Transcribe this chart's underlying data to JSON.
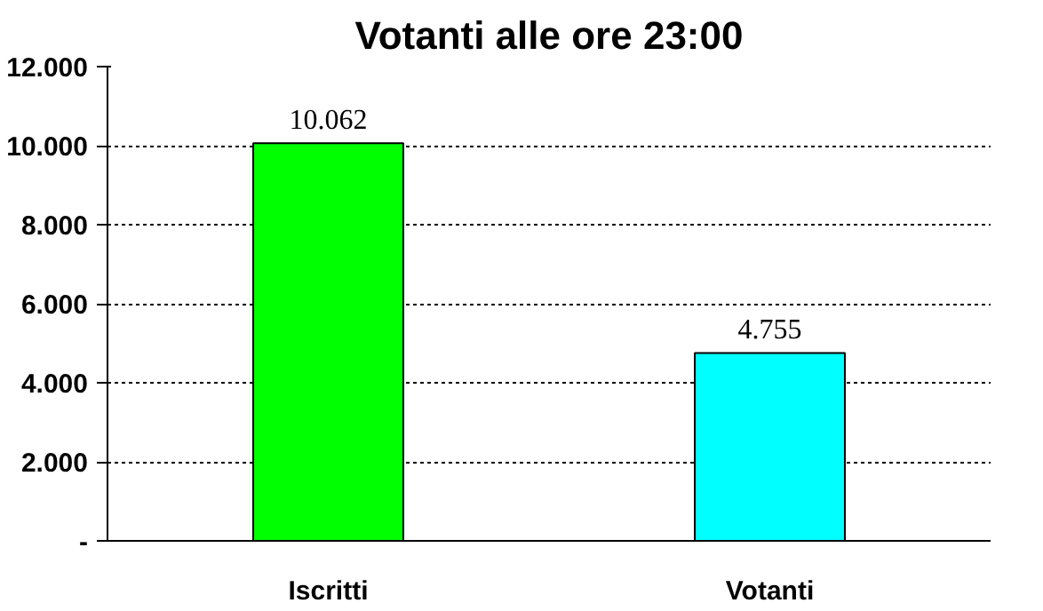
{
  "chart_data": {
    "type": "bar",
    "title": "Votanti alle ore 23:00",
    "categories": [
      "Iscritti",
      "Votanti"
    ],
    "values": [
      10062,
      4755
    ],
    "colors": [
      "#00ff00",
      "#00ffff"
    ],
    "value_labels": [
      "10.062",
      "4.755"
    ],
    "ylim": [
      0,
      12000
    ],
    "yticks": [
      {
        "value": 0,
        "label": "-"
      },
      {
        "value": 2000,
        "label": "2.000"
      },
      {
        "value": 4000,
        "label": "4.000"
      },
      {
        "value": 6000,
        "label": "6.000"
      },
      {
        "value": 8000,
        "label": "8.000"
      },
      {
        "value": 10000,
        "label": "10.000"
      },
      {
        "value": 12000,
        "label": "12.000"
      }
    ],
    "grid": "y"
  }
}
